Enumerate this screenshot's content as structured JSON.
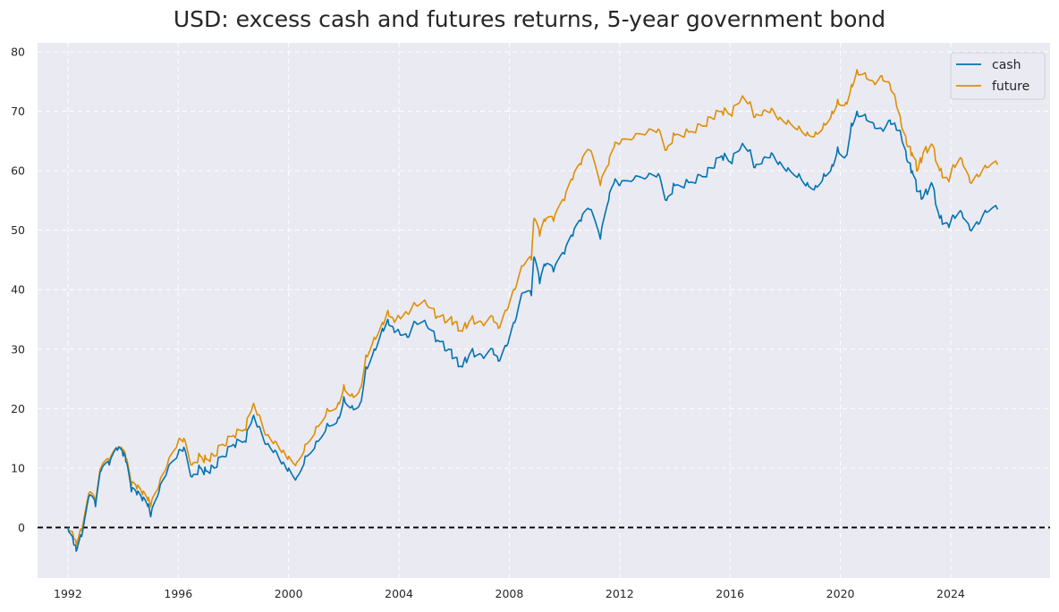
{
  "chart_data": {
    "type": "line",
    "title": "USD: excess cash and futures returns, 5-year government bond",
    "xlabel": "",
    "ylabel": "",
    "xlim": [
      1990.9,
      2027.6
    ],
    "ylim": [
      -8.5,
      81.5
    ],
    "x_ticks": [
      1992,
      1996,
      2000,
      2004,
      2008,
      2012,
      2016,
      2020,
      2024
    ],
    "y_ticks": [
      0,
      10,
      20,
      30,
      40,
      50,
      60,
      70,
      80
    ],
    "grid": true,
    "background": "#eaeaf2",
    "reference_line": {
      "y": 0,
      "style": "dashed",
      "color": "#000000"
    },
    "legend": {
      "placement": "top-right",
      "entries": [
        "cash",
        "future"
      ]
    },
    "series": [
      {
        "name": "cash",
        "color": "#0173b2",
        "x": [
          1992.0,
          1992.2,
          1992.3,
          1992.5,
          1992.8,
          1993.0,
          1993.2,
          1993.5,
          1993.8,
          1994.0,
          1994.1,
          1994.3,
          1994.5,
          1994.7,
          1994.9,
          1995.0,
          1995.3,
          1995.6,
          1996.0,
          1996.2,
          1996.5,
          1996.8,
          1997.0,
          1997.3,
          1997.6,
          1998.0,
          1998.4,
          1998.7,
          1998.9,
          1999.2,
          1999.5,
          1999.8,
          2000.0,
          2000.3,
          2000.6,
          2001.0,
          2001.4,
          2001.8,
          2002.0,
          2002.3,
          2002.6,
          2002.8,
          2003.1,
          2003.4,
          2003.6,
          2003.8,
          2004.0,
          2004.3,
          2004.6,
          2005.0,
          2005.4,
          2005.8,
          2006.0,
          2006.3,
          2006.6,
          2007.0,
          2007.4,
          2007.6,
          2007.9,
          2008.2,
          2008.5,
          2008.8,
          2008.9,
          2009.1,
          2009.3,
          2009.6,
          2010.0,
          2010.3,
          2010.6,
          2010.9,
          2011.3,
          2011.6,
          2011.8,
          2012.0,
          2012.5,
          2013.0,
          2013.4,
          2013.7,
          2014.0,
          2014.5,
          2015.0,
          2015.3,
          2015.7,
          2016.0,
          2016.4,
          2016.7,
          2016.9,
          2017.2,
          2017.5,
          2017.8,
          2018.1,
          2018.5,
          2018.8,
          2019.1,
          2019.4,
          2019.7,
          2019.9,
          2020.2,
          2020.4,
          2020.6,
          2020.9,
          2021.2,
          2021.5,
          2021.8,
          2022.0,
          2022.2,
          2022.4,
          2022.6,
          2022.8,
          2023.0,
          2023.3,
          2023.6,
          2023.9,
          2024.1,
          2024.4,
          2024.7,
          2025.0,
          2025.3,
          2025.7
        ],
        "values": [
          0.0,
          -2.5,
          -4.0,
          -1.5,
          5.5,
          3.5,
          9.5,
          10.5,
          13.0,
          12.0,
          11.0,
          6.0,
          5.5,
          4.5,
          3.5,
          1.8,
          6.0,
          9.5,
          12.5,
          13.5,
          8.5,
          10.0,
          9.5,
          10.0,
          12.0,
          14.0,
          14.5,
          18.5,
          17.0,
          14.0,
          13.0,
          11.0,
          10.0,
          8.5,
          12.0,
          14.5,
          17.5,
          18.5,
          22.0,
          20.5,
          21.0,
          27.0,
          30.0,
          33.5,
          35.0,
          33.5,
          33.0,
          32.0,
          34.5,
          34.0,
          31.5,
          30.0,
          28.5,
          27.0,
          29.5,
          29.0,
          30.0,
          28.0,
          30.5,
          34.5,
          39.5,
          39.0,
          45.5,
          41.0,
          44.0,
          43.0,
          46.0,
          49.0,
          51.5,
          53.5,
          48.5,
          55.0,
          58.0,
          57.5,
          58.5,
          59.0,
          59.5,
          55.0,
          57.5,
          58.0,
          59.0,
          60.5,
          62.5,
          61.5,
          64.0,
          63.5,
          60.5,
          62.0,
          63.0,
          61.5,
          60.5,
          59.5,
          58.0,
          57.5,
          59.5,
          61.0,
          64.0,
          62.5,
          68.0,
          70.0,
          69.5,
          68.0,
          67.0,
          68.5,
          67.5,
          66.0,
          62.0,
          60.0,
          56.5,
          55.5,
          58.0,
          52.0,
          51.0,
          52.5,
          53.0,
          50.0,
          51.0,
          53.0,
          53.5
        ]
      },
      {
        "name": "future",
        "color": "#de8f05",
        "x": [
          1992.0,
          1992.2,
          1992.3,
          1992.5,
          1992.8,
          1993.0,
          1993.2,
          1993.5,
          1993.8,
          1994.0,
          1994.1,
          1994.3,
          1994.5,
          1994.7,
          1994.9,
          1995.0,
          1995.3,
          1995.6,
          1996.0,
          1996.2,
          1996.5,
          1996.8,
          1997.0,
          1997.3,
          1997.6,
          1998.0,
          1998.4,
          1998.7,
          1998.9,
          1999.2,
          1999.5,
          1999.8,
          2000.0,
          2000.3,
          2000.6,
          2001.0,
          2001.4,
          2001.8,
          2002.0,
          2002.3,
          2002.6,
          2002.8,
          2003.1,
          2003.4,
          2003.6,
          2003.8,
          2004.0,
          2004.3,
          2004.6,
          2005.0,
          2005.4,
          2005.8,
          2006.0,
          2006.3,
          2006.6,
          2007.0,
          2007.4,
          2007.6,
          2007.9,
          2008.2,
          2008.5,
          2008.8,
          2008.9,
          2009.1,
          2009.3,
          2009.6,
          2010.0,
          2010.3,
          2010.6,
          2010.9,
          2011.3,
          2011.6,
          2011.8,
          2012.0,
          2012.5,
          2013.0,
          2013.4,
          2013.7,
          2014.0,
          2014.5,
          2015.0,
          2015.3,
          2015.7,
          2016.0,
          2016.4,
          2016.7,
          2016.9,
          2017.2,
          2017.5,
          2017.8,
          2018.1,
          2018.5,
          2018.8,
          2019.1,
          2019.4,
          2019.7,
          2019.9,
          2020.2,
          2020.4,
          2020.6,
          2020.9,
          2021.2,
          2021.5,
          2021.8,
          2022.0,
          2022.2,
          2022.4,
          2022.6,
          2022.8,
          2023.0,
          2023.3,
          2023.6,
          2023.9,
          2024.1,
          2024.4,
          2024.7,
          2025.0,
          2025.3,
          2025.7
        ],
        "values": [
          0.0,
          -1.5,
          -3.0,
          -0.5,
          6.0,
          4.0,
          10.0,
          11.0,
          13.0,
          12.5,
          11.5,
          7.0,
          6.5,
          5.5,
          4.5,
          3.5,
          7.0,
          10.5,
          14.5,
          15.0,
          10.5,
          12.0,
          11.5,
          12.0,
          14.0,
          15.5,
          16.5,
          20.5,
          19.0,
          15.5,
          14.5,
          13.0,
          12.0,
          11.0,
          14.0,
          17.0,
          20.0,
          21.0,
          24.0,
          22.5,
          23.5,
          29.0,
          32.0,
          34.5,
          36.5,
          35.0,
          35.5,
          36.0,
          37.5,
          37.5,
          35.5,
          35.0,
          34.5,
          33.0,
          35.0,
          34.5,
          35.5,
          33.5,
          36.5,
          40.0,
          44.0,
          45.0,
          52.0,
          49.0,
          51.5,
          51.5,
          55.0,
          58.5,
          61.0,
          63.5,
          57.5,
          61.0,
          64.0,
          64.5,
          65.5,
          66.5,
          67.0,
          63.5,
          66.0,
          66.5,
          67.5,
          69.0,
          70.0,
          69.5,
          72.0,
          71.5,
          69.0,
          70.0,
          70.5,
          69.0,
          68.5,
          67.5,
          66.5,
          66.5,
          68.0,
          70.0,
          72.0,
          71.5,
          74.5,
          77.0,
          76.5,
          75.0,
          76.0,
          74.5,
          72.0,
          68.0,
          64.5,
          63.0,
          60.0,
          63.0,
          64.5,
          60.0,
          58.5,
          61.0,
          62.0,
          58.0,
          59.0,
          60.5,
          61.0
        ]
      }
    ]
  }
}
